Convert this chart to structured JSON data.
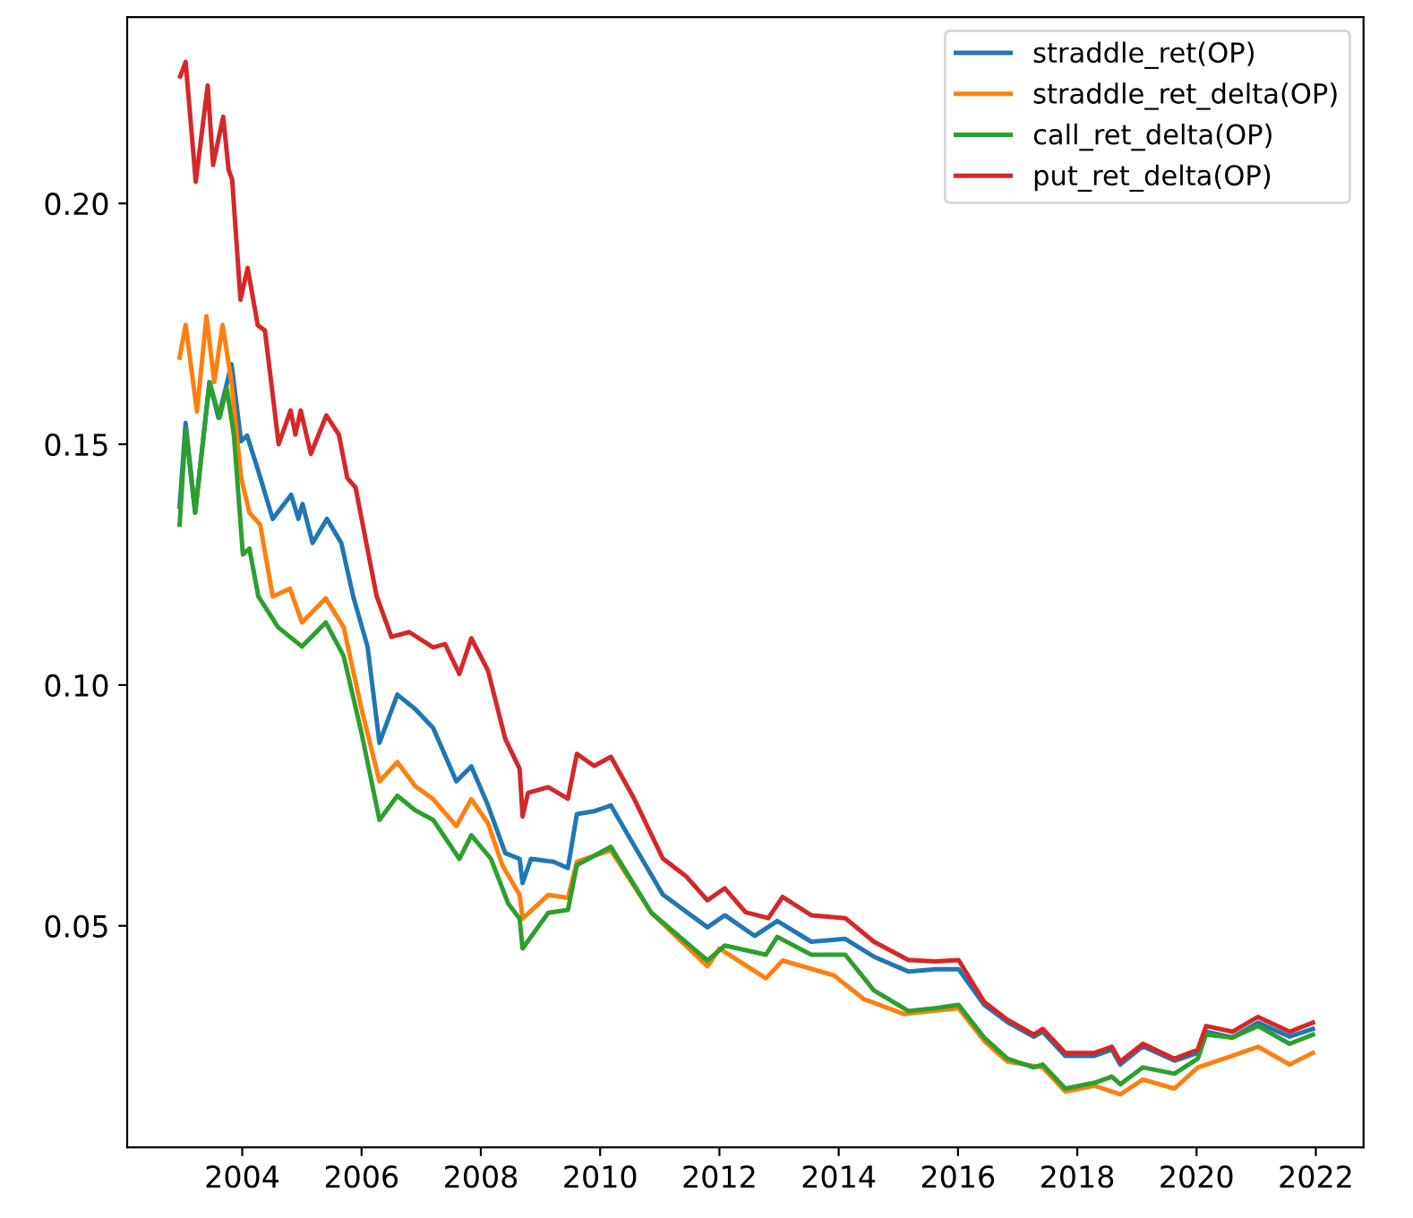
{
  "chart_data": {
    "type": "line",
    "xlim": [
      2002.07,
      2022.8
    ],
    "xticks": [
      2004,
      2006,
      2008,
      2010,
      2012,
      2014,
      2016,
      2018,
      2020,
      2022
    ],
    "ylim": [
      0.004,
      0.2387
    ],
    "yticks": [
      {
        "value": 0.05,
        "label": "0.05"
      },
      {
        "value": 0.1,
        "label": "0.10"
      },
      {
        "value": 0.15,
        "label": "0.15"
      },
      {
        "value": 0.2,
        "label": "0.20"
      }
    ],
    "grid": false,
    "legend": "top right",
    "line_style": "solid",
    "marker": "none",
    "series": [
      {
        "name": "straddle_ret(OP)",
        "color": "#1f77b4",
        "x": [
          2002.95,
          2003.05,
          2003.21,
          2003.45,
          2003.6,
          2003.82,
          2003.98,
          2004.08,
          2004.27,
          2004.51,
          2004.82,
          2004.94,
          2005.01,
          2005.18,
          2005.42,
          2005.66,
          2005.86,
          2006.1,
          2006.3,
          2006.6,
          2006.9,
          2007.2,
          2007.59,
          2007.84,
          2008.12,
          2008.41,
          2008.65,
          2008.7,
          2008.84,
          2009.22,
          2009.46,
          2009.61,
          2009.9,
          2010.18,
          2010.47,
          2011.05,
          2011.8,
          2012.09,
          2012.59,
          2012.97,
          2013.54,
          2014.11,
          2014.59,
          2015.17,
          2015.62,
          2016.01,
          2016.44,
          2016.83,
          2017.27,
          2017.42,
          2017.8,
          2018.29,
          2018.58,
          2018.72,
          2019.1,
          2019.63,
          2020.02,
          2020.16,
          2020.6,
          2021.03,
          2021.56,
          2021.95
        ],
        "values": [
          0.137,
          0.1544,
          0.1358,
          0.1629,
          0.1555,
          0.1666,
          0.1506,
          0.1518,
          0.1444,
          0.1345,
          0.1395,
          0.1345,
          0.1376,
          0.1295,
          0.1345,
          0.1295,
          0.1184,
          0.108,
          0.088,
          0.098,
          0.095,
          0.0911,
          0.08,
          0.0831,
          0.075,
          0.0651,
          0.0639,
          0.0589,
          0.0639,
          0.0633,
          0.062,
          0.0732,
          0.0738,
          0.075,
          0.0688,
          0.0565,
          0.0497,
          0.0522,
          0.0479,
          0.051,
          0.0467,
          0.0473,
          0.0436,
          0.0405,
          0.041,
          0.041,
          0.0336,
          0.03,
          0.027,
          0.028,
          0.023,
          0.023,
          0.0243,
          0.0212,
          0.025,
          0.022,
          0.0236,
          0.028,
          0.0268,
          0.0299,
          0.027,
          0.0286
        ]
      },
      {
        "name": "straddle_ret_delta(OP)",
        "color": "#ff7f0e",
        "x": [
          2002.95,
          2003.05,
          2003.24,
          2003.4,
          2003.53,
          2003.67,
          2003.82,
          2003.98,
          2004.12,
          2004.3,
          2004.51,
          2004.8,
          2005.0,
          2005.4,
          2005.7,
          2006.0,
          2006.3,
          2006.6,
          2006.9,
          2007.2,
          2007.59,
          2007.84,
          2008.12,
          2008.36,
          2008.65,
          2008.7,
          2009.13,
          2009.46,
          2009.61,
          2010.18,
          2010.86,
          2011.8,
          2012.0,
          2012.78,
          2013.06,
          2013.92,
          2014.42,
          2015.09,
          2016.01,
          2016.44,
          2016.83,
          2017.42,
          2017.8,
          2018.29,
          2018.72,
          2019.1,
          2019.63,
          2020.02,
          2020.6,
          2021.03,
          2021.56,
          2021.95
        ],
        "values": [
          0.168,
          0.1748,
          0.1568,
          0.1766,
          0.1629,
          0.1748,
          0.1629,
          0.1431,
          0.1358,
          0.1333,
          0.1184,
          0.12,
          0.113,
          0.118,
          0.112,
          0.095,
          0.08,
          0.084,
          0.079,
          0.0763,
          0.0707,
          0.0763,
          0.0713,
          0.0626,
          0.0564,
          0.0515,
          0.0564,
          0.0558,
          0.0633,
          0.0657,
          0.0527,
          0.0416,
          0.0453,
          0.0391,
          0.0428,
          0.0397,
          0.0348,
          0.0317,
          0.0329,
          0.0261,
          0.0218,
          0.0206,
          0.0156,
          0.0168,
          0.015,
          0.0181,
          0.0162,
          0.0206,
          0.023,
          0.0249,
          0.0212,
          0.0236
        ]
      },
      {
        "name": "call_ret_delta(OP)",
        "color": "#2ca02c",
        "x": [
          2002.95,
          2003.05,
          2003.21,
          2003.45,
          2003.62,
          2003.74,
          2003.86,
          2004.01,
          2004.12,
          2004.27,
          2004.6,
          2005.0,
          2005.4,
          2005.7,
          2006.0,
          2006.3,
          2006.6,
          2006.9,
          2007.2,
          2007.64,
          2007.84,
          2008.17,
          2008.46,
          2008.65,
          2008.7,
          2009.13,
          2009.46,
          2009.61,
          2010.18,
          2010.86,
          2011.8,
          2012.09,
          2012.78,
          2012.97,
          2013.54,
          2014.11,
          2014.59,
          2015.17,
          2015.62,
          2016.01,
          2016.44,
          2016.83,
          2017.27,
          2017.42,
          2017.8,
          2018.29,
          2018.58,
          2018.72,
          2019.1,
          2019.63,
          2020.02,
          2020.16,
          2020.6,
          2021.03,
          2021.56,
          2021.95
        ],
        "values": [
          0.1333,
          0.1531,
          0.1358,
          0.1629,
          0.1555,
          0.1617,
          0.1518,
          0.1271,
          0.1283,
          0.1184,
          0.112,
          0.108,
          0.113,
          0.106,
          0.09,
          0.072,
          0.077,
          0.074,
          0.072,
          0.0639,
          0.0688,
          0.0639,
          0.0546,
          0.0515,
          0.0453,
          0.0527,
          0.0533,
          0.0626,
          0.0664,
          0.0527,
          0.0428,
          0.0459,
          0.044,
          0.0477,
          0.044,
          0.044,
          0.0366,
          0.0323,
          0.0329,
          0.0336,
          0.0268,
          0.0224,
          0.0206,
          0.0212,
          0.0162,
          0.0174,
          0.0187,
          0.0171,
          0.0206,
          0.0193,
          0.0224,
          0.0274,
          0.0268,
          0.0292,
          0.0255,
          0.0274
        ]
      },
      {
        "name": "put_ret_delta(OP)",
        "color": "#d62728",
        "x": [
          2002.96,
          2003.05,
          2003.22,
          2003.42,
          2003.51,
          2003.68,
          2003.77,
          2003.83,
          2003.97,
          2004.09,
          2004.26,
          2004.38,
          2004.61,
          2004.81,
          2004.89,
          2004.98,
          2005.15,
          2005.41,
          2005.62,
          2005.76,
          2005.9,
          2006.25,
          2006.5,
          2006.8,
          2007.2,
          2007.4,
          2007.64,
          2007.84,
          2008.12,
          2008.41,
          2008.65,
          2008.7,
          2008.79,
          2009.13,
          2009.46,
          2009.61,
          2009.9,
          2010.18,
          2010.57,
          2011.05,
          2011.44,
          2011.8,
          2012.09,
          2012.44,
          2012.82,
          2013.06,
          2013.54,
          2014.11,
          2014.59,
          2015.17,
          2015.62,
          2016.01,
          2016.44,
          2016.83,
          2017.27,
          2017.42,
          2017.8,
          2018.29,
          2018.58,
          2018.72,
          2019.1,
          2019.63,
          2020.02,
          2020.16,
          2020.6,
          2021.03,
          2021.56,
          2021.95
        ],
        "values": [
          0.2264,
          0.2294,
          0.2045,
          0.2245,
          0.208,
          0.218,
          0.207,
          0.205,
          0.18,
          0.1866,
          0.1747,
          0.1736,
          0.15,
          0.157,
          0.152,
          0.157,
          0.148,
          0.156,
          0.152,
          0.143,
          0.141,
          0.1186,
          0.11,
          0.111,
          0.1078,
          0.1085,
          0.1023,
          0.1097,
          0.103,
          0.0888,
          0.0826,
          0.0727,
          0.0776,
          0.0788,
          0.0764,
          0.0857,
          0.0832,
          0.0851,
          0.0764,
          0.064,
          0.0603,
          0.0553,
          0.0578,
          0.0528,
          0.0516,
          0.056,
          0.0522,
          0.0516,
          0.0467,
          0.0429,
          0.0426,
          0.0429,
          0.0342,
          0.0305,
          0.0274,
          0.0286,
          0.0236,
          0.0236,
          0.0249,
          0.0218,
          0.0255,
          0.0224,
          0.0243,
          0.0292,
          0.028,
          0.0311,
          0.028,
          0.0299
        ]
      }
    ]
  }
}
